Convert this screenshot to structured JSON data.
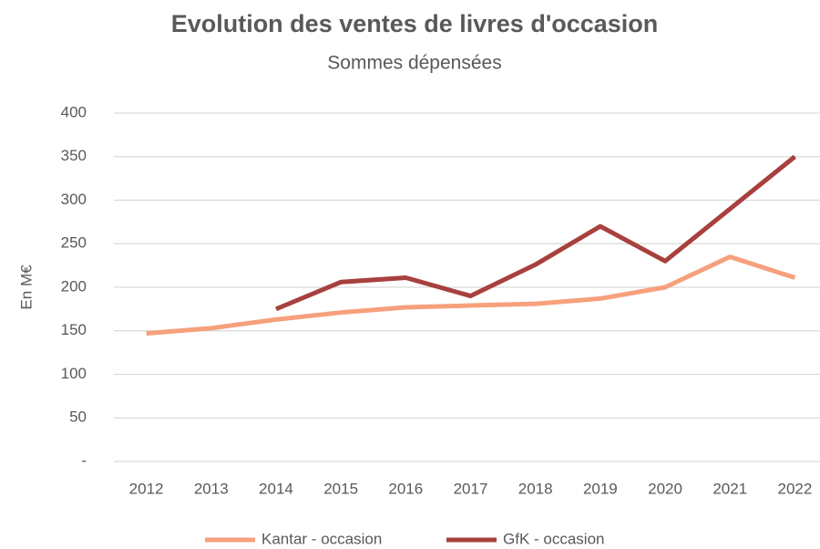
{
  "chart_data": {
    "type": "line",
    "title": "Evolution des ventes de livres d'occasion",
    "subtitle": "Sommes dépensées",
    "y_label": "En M€",
    "categories": [
      "2012",
      "2013",
      "2014",
      "2015",
      "2016",
      "2017",
      "2018",
      "2019",
      "2020",
      "2021",
      "2022"
    ],
    "series": [
      {
        "name": "Kantar - occasion",
        "color": "#f7a07c",
        "values": [
          147,
          153,
          163,
          171,
          177,
          179,
          181,
          187,
          200,
          235,
          211
        ]
      },
      {
        "name": "GfK - occasion",
        "color": "#a8403d",
        "values": [
          null,
          null,
          175,
          206,
          211,
          190,
          226,
          270,
          230,
          290,
          350
        ]
      }
    ],
    "ylim": [
      0,
      400
    ],
    "yticks": [
      {
        "value": 0,
        "label": "-"
      },
      50,
      100,
      150,
      200,
      250,
      300,
      350,
      400
    ],
    "grid": true,
    "legend": "bottom"
  }
}
